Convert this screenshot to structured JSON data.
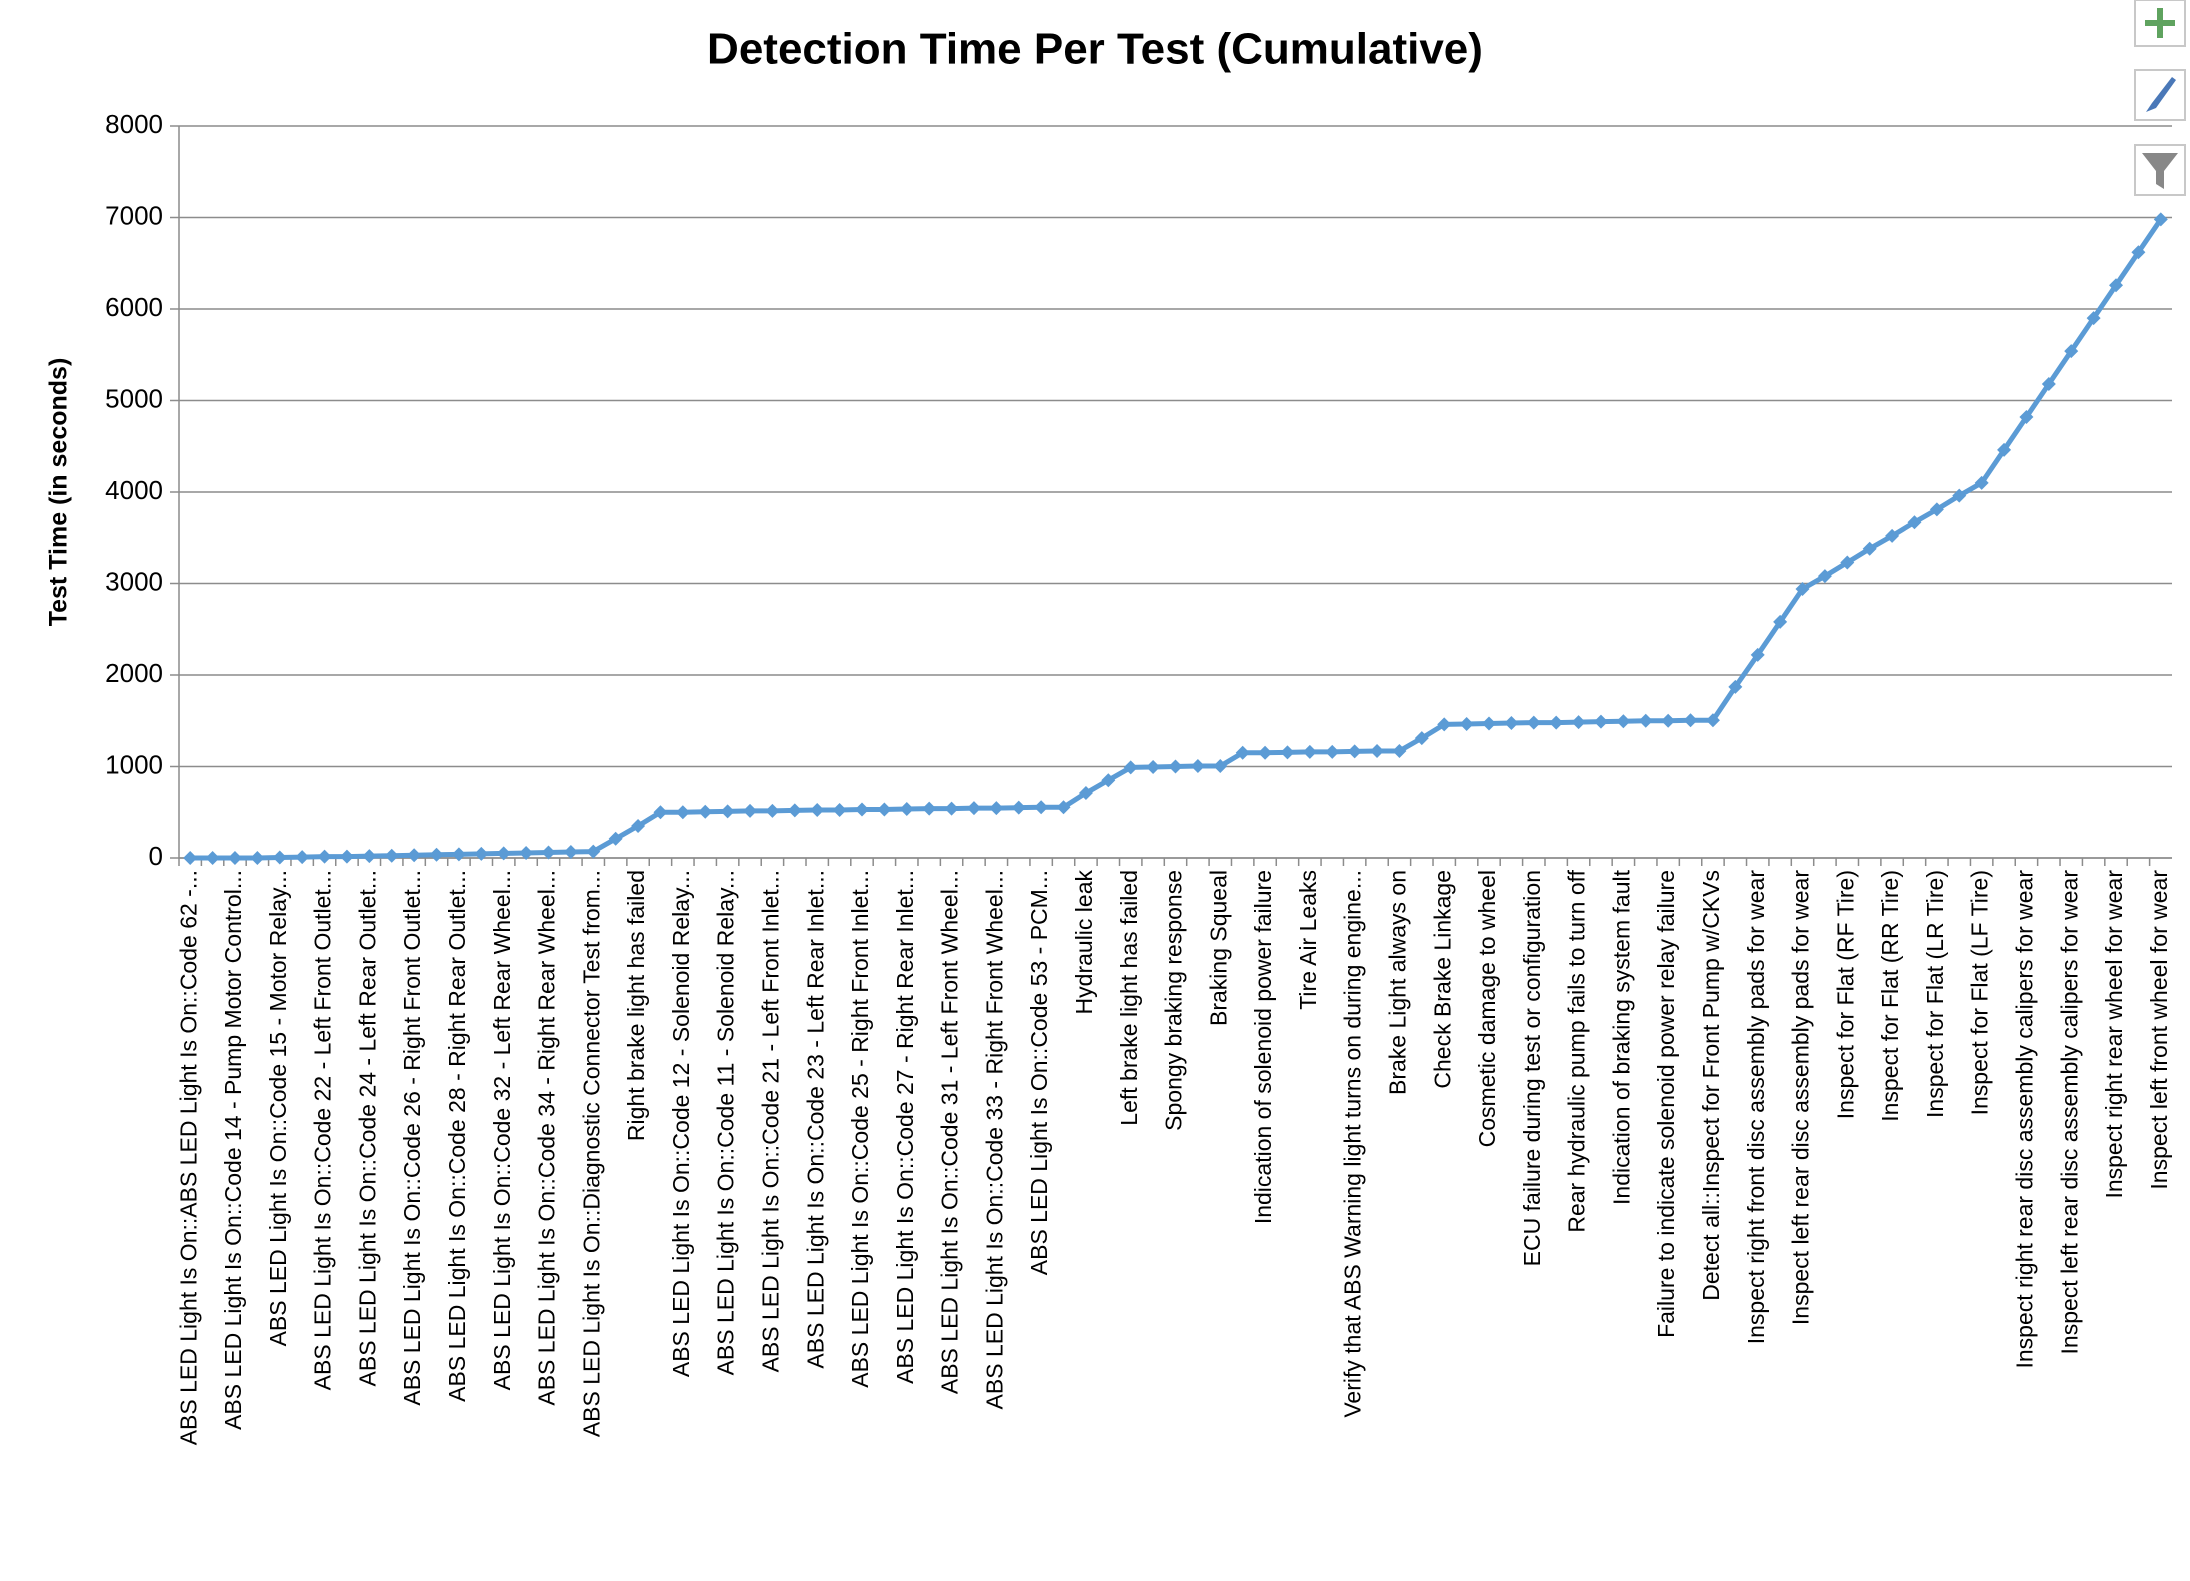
{
  "chart_data": {
    "type": "line",
    "title": "Detection Time Per Test (Cumulative)",
    "y_label": "Test Time (in seconds)",
    "categories": [
      "ABS LED Light Is On::ABS LED Light Is On::Code 62 -...",
      null,
      "ABS LED Light Is On::Code 14 - Pump Motor Control...",
      null,
      "ABS LED Light Is On::Code 15 - Motor Relay...",
      null,
      "ABS LED Light Is On::Code 22 - Left Front Outlet...",
      null,
      "ABS LED Light Is On::Code 24 - Left Rear Outlet...",
      null,
      "ABS LED Light Is On::Code 26 - Right Front Outlet...",
      null,
      "ABS LED Light Is On::Code 28 - Right Rear Outlet...",
      null,
      "ABS LED Light Is On::Code 32 - Left Rear Wheel...",
      null,
      "ABS LED Light Is On::Code 34 - Right Rear Wheel...",
      null,
      "ABS LED Light Is On::Diagnostic Connector Test from...",
      null,
      "Right brake light has failed",
      null,
      "ABS LED Light Is On::Code 12 - Solenoid Relay...",
      null,
      "ABS LED Light Is On::Code 11 - Solenoid Relay...",
      null,
      "ABS LED Light Is On::Code 21 - Left Front Inlet...",
      null,
      "ABS LED Light Is On::Code 23 - Left Rear Inlet...",
      null,
      "ABS LED Light Is On::Code 25 - Right Front Inlet...",
      null,
      "ABS LED Light Is On::Code 27 - Right Rear Inlet...",
      null,
      "ABS LED Light Is On::Code 31 - Left Front Wheel...",
      null,
      "ABS LED Light Is On::Code 33 - Right Front Wheel...",
      null,
      "ABS LED Light Is On::Code 53 - PCM...",
      null,
      "Hydraulic leak",
      null,
      "Left brake light has failed",
      null,
      "Spongy braking response",
      null,
      "Braking Squeal",
      null,
      "Indication of solenoid power failure",
      null,
      "Tire Air Leaks",
      null,
      "Verify that ABS Warning light turns on during engine...",
      null,
      "Brake Light always on",
      null,
      "Check Brake Linkage",
      null,
      "Cosmetic damage to wheel",
      null,
      "ECU failure during test or configuration",
      null,
      "Rear hydraulic pump fails to turn off",
      null,
      "Indication of braking system fault",
      null,
      "Failure to indicate solenoid power relay failure",
      null,
      "Detect all::Inspect for Front Pump w/CKVs",
      null,
      "Inspect right front disc assembly pads for wear",
      null,
      "Inspect left rear disc assembly pads for wear",
      null,
      "Inspect for Flat (RF Tire)",
      null,
      "Inspect for Flat (RR Tire)",
      null,
      "Inspect for Flat (LR Tire)",
      null,
      "Inspect for Flat (LF Tire)",
      null,
      "Inspect right rear disc assembly calipers for wear",
      null,
      "Inspect left rear disc assembly calipers for wear",
      null,
      "Inspect right rear wheel for wear",
      null,
      "Inspect left front wheel for wear"
    ],
    "values": [
      0,
      0,
      0,
      0,
      5,
      10,
      15,
      15,
      20,
      25,
      30,
      35,
      40,
      45,
      50,
      55,
      60,
      65,
      70,
      210,
      350,
      500,
      500,
      505,
      510,
      515,
      515,
      520,
      525,
      525,
      530,
      530,
      535,
      540,
      540,
      545,
      545,
      550,
      555,
      555,
      710,
      850,
      990,
      995,
      1000,
      1005,
      1005,
      1150,
      1150,
      1155,
      1160,
      1160,
      1165,
      1170,
      1170,
      1310,
      1460,
      1465,
      1470,
      1475,
      1480,
      1480,
      1485,
      1490,
      1495,
      1500,
      1500,
      1505,
      1505,
      1870,
      2220,
      2580,
      2940,
      3080,
      3230,
      3380,
      3520,
      3670,
      3810,
      3960,
      4100,
      4460,
      4820,
      5180,
      5540,
      5900,
      6260,
      6620,
      6980
    ],
    "color": "#5b9bd5",
    "ylim": [
      0,
      8000
    ],
    "yticks": [
      0,
      1000,
      2000,
      3000,
      4000,
      5000,
      6000,
      7000,
      8000
    ],
    "grid": true
  }
}
